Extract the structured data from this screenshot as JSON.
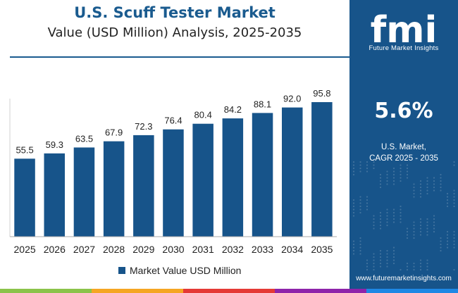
{
  "header": {
    "title": "U.S. Scuff Tester Market",
    "subtitle": "Value (USD Million) Analysis, 2025-2035"
  },
  "chart_data": {
    "type": "bar",
    "categories": [
      "2025",
      "2026",
      "2027",
      "2028",
      "2029",
      "2030",
      "2031",
      "2032",
      "2033",
      "2034",
      "2035"
    ],
    "series": [
      {
        "name": "Market Value USD Million",
        "values": [
          55.5,
          59.3,
          63.5,
          67.9,
          72.3,
          76.4,
          80.4,
          84.2,
          88.1,
          92.0,
          95.8
        ]
      }
    ],
    "value_labels": [
      "55.5",
      "59.3",
      "63.5",
      "67.9",
      "72.3",
      "76.4",
      "80.4",
      "84.2",
      "88.1",
      "92.0",
      "95.8"
    ],
    "ylim": [
      0,
      100
    ],
    "y_axis_visible": false,
    "grid": false,
    "legend_position": "bottom-center",
    "colors": {
      "bar": "#17548a",
      "axis": "#aaaaaa"
    }
  },
  "sidebar": {
    "logo_text": "fmi",
    "logo_subtitle": "Future Market Insights",
    "cagr_value": "5.6%",
    "cagr_label_line1": "U.S. Market,",
    "cagr_label_line2": "CAGR 2025 - 2035",
    "website": "www.futuremarketinsights.com",
    "background_color": "#17548a"
  },
  "footer": {
    "stripe_colors": [
      "#8bc34a",
      "#f5a623",
      "#e53935",
      "#8e24aa",
      "#1e88e5"
    ]
  }
}
